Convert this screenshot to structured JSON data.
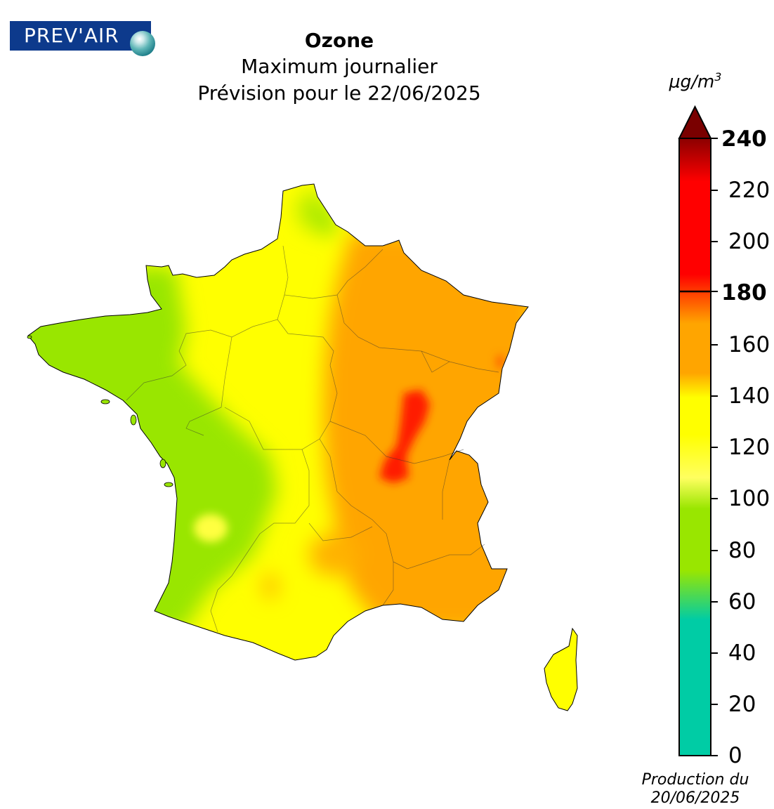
{
  "logo": {
    "text": "PREV'AIR"
  },
  "header": {
    "title": "Ozone",
    "subtitle": "Maximum journalier",
    "forecast": "Prévision pour le 22/06/2025"
  },
  "legend": {
    "unit": "μg/m",
    "unit_exponent": "3",
    "ticks": [
      "0",
      "20",
      "40",
      "60",
      "80",
      "100",
      "120",
      "140",
      "160",
      "180",
      "200",
      "220",
      "240"
    ],
    "bold_ticks": [
      "180",
      "240"
    ],
    "range": [
      0,
      240
    ],
    "threshold": 180,
    "colors": {
      "teal": "#00cca5",
      "green": "#99e600",
      "yellow": "#ffff00",
      "orange": "#ffa500",
      "red": "#ff0000",
      "dark_red": "#8b0000"
    }
  },
  "footer": {
    "production_line1": "Production du",
    "production_line2": "20/06/2025"
  },
  "map": {
    "country": "France",
    "pollutant": "Ozone"
  }
}
